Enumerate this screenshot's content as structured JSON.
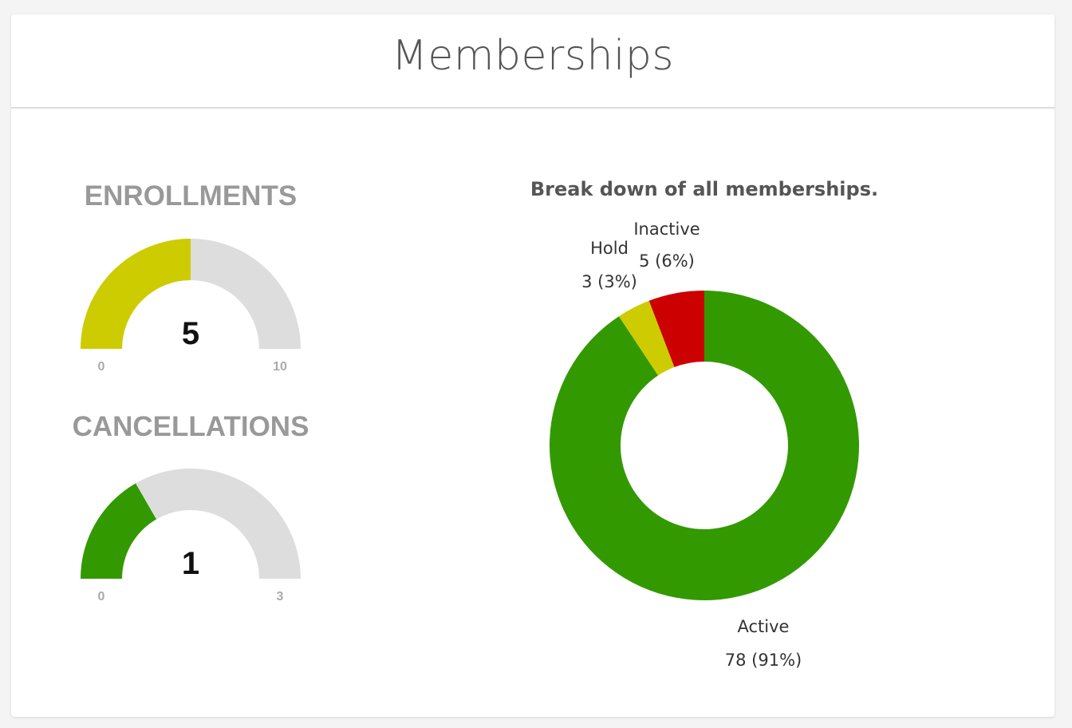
{
  "card": {
    "title": "Memberships"
  },
  "chart_data": [
    {
      "type": "gauge",
      "title": "ENROLLMENTS",
      "value": 5,
      "min": 0,
      "max": 10,
      "labels": {
        "value": "5",
        "min": "0",
        "max": "10"
      },
      "fill_color": "#cccc00",
      "track_color": "#dddddd"
    },
    {
      "type": "gauge",
      "title": "CANCELLATIONS",
      "value": 1,
      "min": 0,
      "max": 3,
      "labels": {
        "value": "1",
        "min": "0",
        "max": "3"
      },
      "fill_color": "#339900",
      "track_color": "#dddddd"
    },
    {
      "type": "pie",
      "donut": true,
      "title": "Break down of all memberships.",
      "slices": [
        {
          "name": "Active",
          "value": 78,
          "label": "78 (91%)",
          "color": "#339900"
        },
        {
          "name": "Hold",
          "value": 3,
          "label": "3 (3%)",
          "color": "#cccc00"
        },
        {
          "name": "Inactive",
          "value": 5,
          "label": "5 (6%)",
          "color": "#cc0000"
        }
      ]
    }
  ]
}
